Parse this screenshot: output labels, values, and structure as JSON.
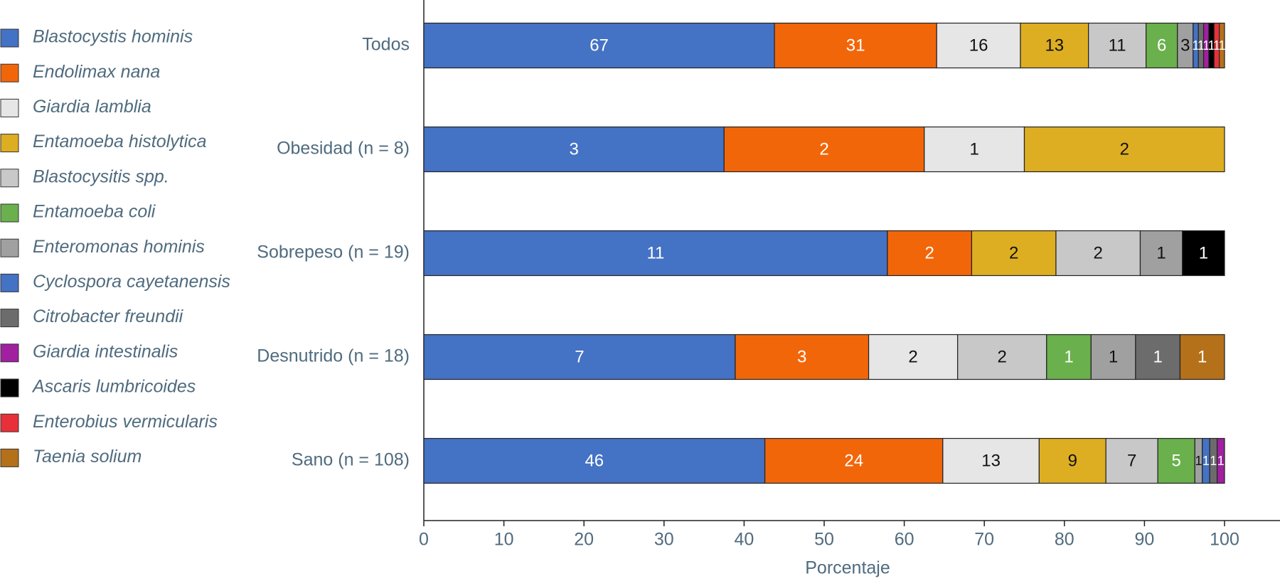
{
  "chart_data": {
    "type": "stacked_percent_bar",
    "orientation": "horizontal",
    "x_label": "Porcentaje",
    "categories": [
      "Todos",
      "Obesidad (n = 8)",
      "Sobrepeso (n = 19)",
      "Desnutrido (n = 18)",
      "Sano (n = 108)"
    ],
    "series": [
      {
        "name": "Blastocystis hominis",
        "color": "#4472c4",
        "values": [
          67,
          3,
          11,
          7,
          46
        ]
      },
      {
        "name": "Endolimax nana",
        "color": "#f2660a",
        "values": [
          31,
          2,
          2,
          3,
          24
        ]
      },
      {
        "name": "Giardia lamblia",
        "color": "#e6e6e6",
        "values": [
          16,
          1,
          null,
          2,
          13
        ]
      },
      {
        "name": "Entamoeba histolytica",
        "color": "#deae22",
        "values": [
          13,
          2,
          2,
          null,
          9
        ]
      },
      {
        "name": "Blastocysitis spp.",
        "color": "#c8c8c8",
        "values": [
          11,
          null,
          2,
          2,
          7
        ]
      },
      {
        "name": "Entamoeba coli",
        "color": "#6ab04c",
        "values": [
          6,
          null,
          null,
          1,
          5
        ]
      },
      {
        "name": "Enteromonas hominis",
        "color": "#a0a0a0",
        "values": [
          3,
          null,
          1,
          1,
          1
        ]
      },
      {
        "name": "Cyclospora cayetanensis",
        "color": "#4472c4",
        "values": [
          1,
          null,
          null,
          null,
          1
        ]
      },
      {
        "name": "Citrobacter freundii",
        "color": "#6c6c6c",
        "values": [
          1,
          null,
          null,
          1,
          1
        ]
      },
      {
        "name": "Giardia intestinalis",
        "color": "#a020a0",
        "values": [
          1,
          null,
          null,
          null,
          1
        ]
      },
      {
        "name": "Ascaris lumbricoides",
        "color": "#000000",
        "values": [
          1,
          null,
          1,
          null,
          null
        ]
      },
      {
        "name": "Enterobius vermicularis",
        "color": "#e8303a",
        "values": [
          1,
          null,
          null,
          null,
          null
        ]
      },
      {
        "name": "Taenia solium",
        "color": "#b5701a",
        "values": [
          1,
          null,
          null,
          1,
          null
        ]
      }
    ],
    "xlim": [
      0,
      100
    ],
    "xticks": [
      0,
      10,
      20,
      30,
      40,
      50,
      60,
      70,
      80,
      90,
      100
    ]
  }
}
